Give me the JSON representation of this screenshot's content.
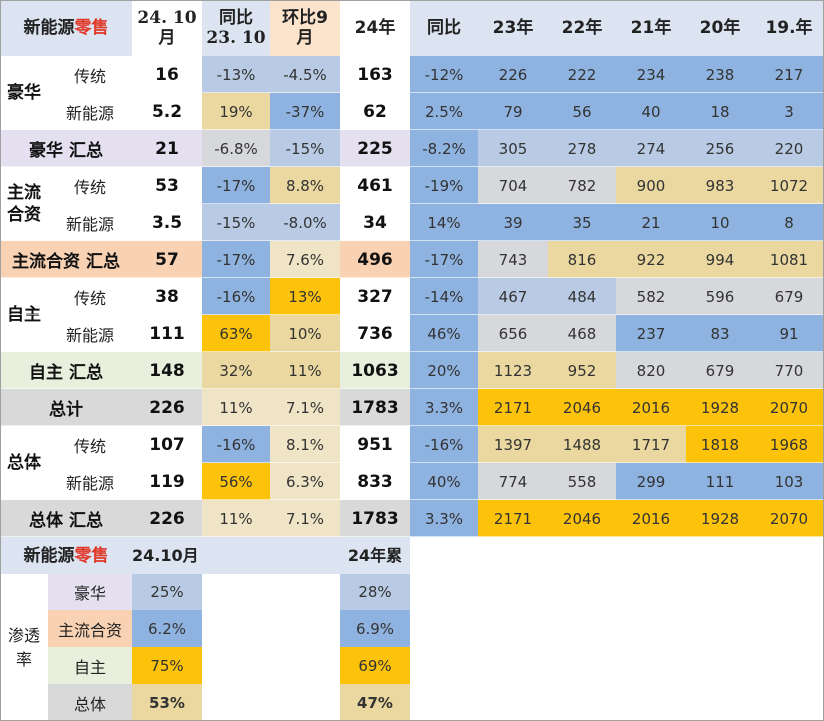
{
  "header": {
    "title_prefix": "新能源",
    "title_suffix": "零售",
    "col_month_1": "24. 10",
    "col_month_2": "月",
    "col_yoy_1": "同比",
    "col_yoy_2": "23. 10",
    "col_mom_1": "环比9",
    "col_mom_2": "月",
    "col_ytd": "24年",
    "col_ytd_yoy": "同比",
    "years": [
      "23年",
      "22年",
      "21年",
      "20年",
      "19.年"
    ]
  },
  "groups": {
    "luxury": "豪华",
    "mainstream_jv": "主流\n合资",
    "domestic": "自主",
    "overall": "总体"
  },
  "rows": [
    {
      "label": "传统",
      "m": "16",
      "yoy": "-13%",
      "mom": "-4.5%",
      "ytd": "163",
      "ytd_yoy": "-12%",
      "y": [
        "226",
        "222",
        "234",
        "238",
        "217"
      ]
    },
    {
      "label": "新能源",
      "m": "5.2",
      "yoy": "19%",
      "mom": "-37%",
      "ytd": "62",
      "ytd_yoy": "2.5%",
      "y": [
        "79",
        "56",
        "40",
        "18",
        "3"
      ]
    },
    {
      "label": "豪华 汇总",
      "m": "21",
      "yoy": "-6.8%",
      "mom": "-15%",
      "ytd": "225",
      "ytd_yoy": "-8.2%",
      "y": [
        "305",
        "278",
        "274",
        "256",
        "220"
      ]
    },
    {
      "label": "传统",
      "m": "53",
      "yoy": "-17%",
      "mom": "8.8%",
      "ytd": "461",
      "ytd_yoy": "-19%",
      "y": [
        "704",
        "782",
        "900",
        "983",
        "1072"
      ]
    },
    {
      "label": "新能源",
      "m": "3.5",
      "yoy": "-15%",
      "mom": "-8.0%",
      "ytd": "34",
      "ytd_yoy": "14%",
      "y": [
        "39",
        "35",
        "21",
        "10",
        "8"
      ]
    },
    {
      "label": "主流合资 汇总",
      "m": "57",
      "yoy": "-17%",
      "mom": "7.6%",
      "ytd": "496",
      "ytd_yoy": "-17%",
      "y": [
        "743",
        "816",
        "922",
        "994",
        "1081"
      ]
    },
    {
      "label": "传统",
      "m": "38",
      "yoy": "-16%",
      "mom": "13%",
      "ytd": "327",
      "ytd_yoy": "-14%",
      "y": [
        "467",
        "484",
        "582",
        "596",
        "679"
      ]
    },
    {
      "label": "新能源",
      "m": "111",
      "yoy": "63%",
      "mom": "10%",
      "ytd": "736",
      "ytd_yoy": "46%",
      "y": [
        "656",
        "468",
        "237",
        "83",
        "91"
      ]
    },
    {
      "label": "自主 汇总",
      "m": "148",
      "yoy": "32%",
      "mom": "11%",
      "ytd": "1063",
      "ytd_yoy": "20%",
      "y": [
        "1123",
        "952",
        "820",
        "679",
        "770"
      ]
    },
    {
      "label": "总计",
      "m": "226",
      "yoy": "11%",
      "mom": "7.1%",
      "ytd": "1783",
      "ytd_yoy": "3.3%",
      "y": [
        "2171",
        "2046",
        "2016",
        "1928",
        "2070"
      ]
    },
    {
      "label": "传统",
      "m": "107",
      "yoy": "-16%",
      "mom": "8.1%",
      "ytd": "951",
      "ytd_yoy": "-16%",
      "y": [
        "1397",
        "1488",
        "1717",
        "1818",
        "1968"
      ]
    },
    {
      "label": "新能源",
      "m": "119",
      "yoy": "56%",
      "mom": "6.3%",
      "ytd": "833",
      "ytd_yoy": "40%",
      "y": [
        "774",
        "558",
        "299",
        "111",
        "103"
      ]
    },
    {
      "label": "总体 汇总",
      "m": "226",
      "yoy": "11%",
      "mom": "7.1%",
      "ytd": "1783",
      "ytd_yoy": "3.3%",
      "y": [
        "2171",
        "2046",
        "2016",
        "1928",
        "2070"
      ]
    }
  ],
  "penetration": {
    "title_prefix": "新能源",
    "title_suffix": "零售",
    "col_month": "24.10月",
    "col_ytd": "24年累",
    "side_label": "渗透\n率",
    "rows": [
      {
        "label": "豪华",
        "m": "25%",
        "ytd": "28%"
      },
      {
        "label": "主流合资",
        "m": "6.2%",
        "ytd": "6.9%"
      },
      {
        "label": "自主",
        "m": "75%",
        "ytd": "69%"
      },
      {
        "label": "总体",
        "m": "53%",
        "ytd": "47%"
      }
    ]
  },
  "colors": {
    "header": "#dbe4f0",
    "blue": "#8fb3e0",
    "light_blue": "#b9cbe4",
    "gray": "#d6d8dc",
    "beige": "#e8d79a",
    "gold": "#fcc30a",
    "lavender": "#e4e0ef",
    "peach": "#f9d2b3",
    "mint": "#e9efdd",
    "red_text": "#e03a2b"
  }
}
